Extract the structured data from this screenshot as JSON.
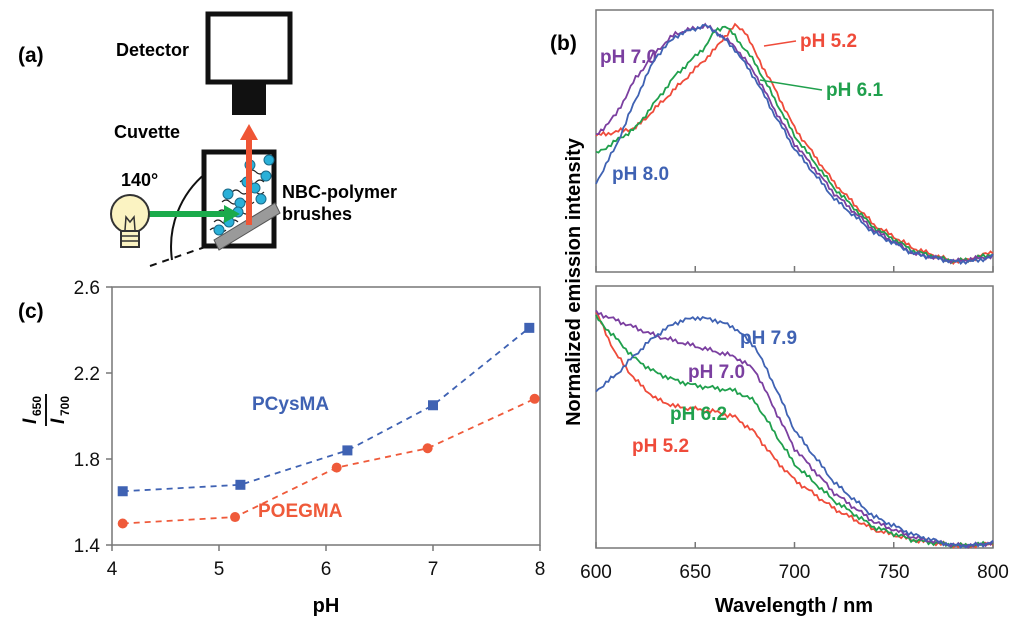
{
  "panel_a": {
    "label": "(a)",
    "detector": "Detector",
    "cuvette": "Cuvette",
    "angle": "140°",
    "sample_line1": "NBC-polymer",
    "sample_line2": "brushes",
    "colors": {
      "excitation": "#1aab4b",
      "emission": "#ef5535",
      "dots": "#2ab0d8"
    }
  },
  "panel_c": {
    "label": "(c)",
    "ylabel_num": "650",
    "ylabel_den": "700",
    "ylabel_i": "I",
    "xlabel": "pH"
  },
  "panel_b": {
    "label": "(b)",
    "ylabel": "Normalized emission intensity",
    "xlabel": "Wavelength / nm"
  },
  "chart_data": [
    {
      "id": "c",
      "type": "scatter",
      "xlim": [
        4,
        8
      ],
      "ylim": [
        1.4,
        2.6
      ],
      "xticks": [
        "4",
        "5",
        "6",
        "7",
        "8"
      ],
      "yticks": [
        "1.4",
        "1.8",
        "2.2",
        "2.6"
      ],
      "grid": false,
      "series": [
        {
          "name": "PCysMA",
          "color": "#3f62b3",
          "marker": "square",
          "x": [
            4.1,
            5.2,
            6.2,
            7.0,
            7.9
          ],
          "y": [
            1.65,
            1.68,
            1.84,
            2.05,
            2.41
          ]
        },
        {
          "name": "POEGMA",
          "color": "#ef5a3a",
          "marker": "circle",
          "x": [
            4.1,
            5.15,
            6.1,
            6.95,
            7.95
          ],
          "y": [
            1.5,
            1.53,
            1.76,
            1.85,
            2.08
          ]
        }
      ]
    },
    {
      "id": "b_top",
      "type": "line",
      "xlim": [
        600,
        800
      ],
      "xticks": [],
      "series": [
        {
          "name": "pH 5.2",
          "color": "#ef4b3a",
          "x": [
            600,
            620,
            640,
            660,
            665,
            670,
            675,
            680,
            690,
            700,
            720,
            740,
            760,
            780,
            790,
            800
          ],
          "y": [
            0.52,
            0.55,
            0.7,
            0.85,
            0.9,
            0.94,
            0.92,
            0.84,
            0.7,
            0.55,
            0.34,
            0.18,
            0.09,
            0.04,
            0.05,
            0.08
          ]
        },
        {
          "name": "pH 6.1",
          "color": "#20a04d",
          "x": [
            600,
            620,
            640,
            655,
            660,
            665,
            670,
            680,
            690,
            700,
            720,
            740,
            760,
            780,
            790,
            800
          ],
          "y": [
            0.45,
            0.55,
            0.75,
            0.86,
            0.92,
            0.94,
            0.9,
            0.8,
            0.66,
            0.52,
            0.32,
            0.17,
            0.08,
            0.04,
            0.05,
            0.07
          ]
        },
        {
          "name": "pH 7.0",
          "color": "#7b3fa0",
          "x": [
            600,
            610,
            620,
            630,
            640,
            650,
            655,
            660,
            670,
            680,
            690,
            700,
            720,
            740,
            760,
            780,
            790,
            800
          ],
          "y": [
            0.52,
            0.6,
            0.74,
            0.84,
            0.91,
            0.93,
            0.94,
            0.92,
            0.86,
            0.76,
            0.62,
            0.49,
            0.3,
            0.16,
            0.07,
            0.04,
            0.05,
            0.06
          ]
        },
        {
          "name": "pH 8.0",
          "color": "#3f62b3",
          "x": [
            600,
            610,
            620,
            630,
            640,
            650,
            655,
            660,
            670,
            680,
            690,
            700,
            720,
            740,
            760,
            780,
            790,
            800
          ],
          "y": [
            0.34,
            0.48,
            0.66,
            0.82,
            0.9,
            0.93,
            0.94,
            0.92,
            0.85,
            0.74,
            0.6,
            0.47,
            0.28,
            0.15,
            0.07,
            0.04,
            0.04,
            0.06
          ]
        }
      ],
      "annotations": [
        "pH 5.2",
        "pH 7.0",
        "pH 6.1",
        "pH 8.0"
      ]
    },
    {
      "id": "b_bottom",
      "type": "line",
      "xlim": [
        600,
        800
      ],
      "xticks": [
        "600",
        "650",
        "700",
        "750",
        "800"
      ],
      "series": [
        {
          "name": "pH 5.2",
          "color": "#ef4b3a",
          "x": [
            600,
            610,
            620,
            630,
            640,
            650,
            660,
            670,
            680,
            690,
            700,
            720,
            740,
            760,
            780,
            790,
            800
          ],
          "y": [
            0.9,
            0.74,
            0.64,
            0.57,
            0.54,
            0.53,
            0.52,
            0.5,
            0.44,
            0.34,
            0.26,
            0.15,
            0.07,
            0.03,
            0.01,
            0.01,
            0.02
          ]
        },
        {
          "name": "pH 6.2",
          "color": "#20a04d",
          "x": [
            600,
            610,
            620,
            630,
            640,
            650,
            660,
            670,
            680,
            690,
            700,
            720,
            740,
            760,
            780,
            790,
            800
          ],
          "y": [
            0.88,
            0.8,
            0.72,
            0.67,
            0.64,
            0.62,
            0.61,
            0.6,
            0.56,
            0.44,
            0.32,
            0.18,
            0.08,
            0.03,
            0.01,
            0.01,
            0.02
          ]
        },
        {
          "name": "pH 7.0",
          "color": "#7b3fa0",
          "x": [
            600,
            610,
            620,
            630,
            640,
            650,
            660,
            670,
            680,
            690,
            700,
            720,
            740,
            760,
            780,
            790,
            800
          ],
          "y": [
            0.9,
            0.87,
            0.84,
            0.81,
            0.79,
            0.77,
            0.75,
            0.73,
            0.68,
            0.53,
            0.38,
            0.21,
            0.1,
            0.04,
            0.01,
            0.01,
            0.02
          ]
        },
        {
          "name": "pH 7.9",
          "color": "#3f62b3",
          "x": [
            600,
            610,
            620,
            630,
            640,
            650,
            660,
            670,
            680,
            690,
            700,
            720,
            740,
            760,
            780,
            790,
            800
          ],
          "y": [
            0.6,
            0.66,
            0.74,
            0.81,
            0.86,
            0.88,
            0.87,
            0.84,
            0.77,
            0.62,
            0.45,
            0.25,
            0.12,
            0.05,
            0.01,
            0.01,
            0.02
          ]
        }
      ],
      "annotations": [
        "pH 7.9",
        "pH 7.0",
        "pH 6.2",
        "pH 5.2"
      ]
    }
  ]
}
